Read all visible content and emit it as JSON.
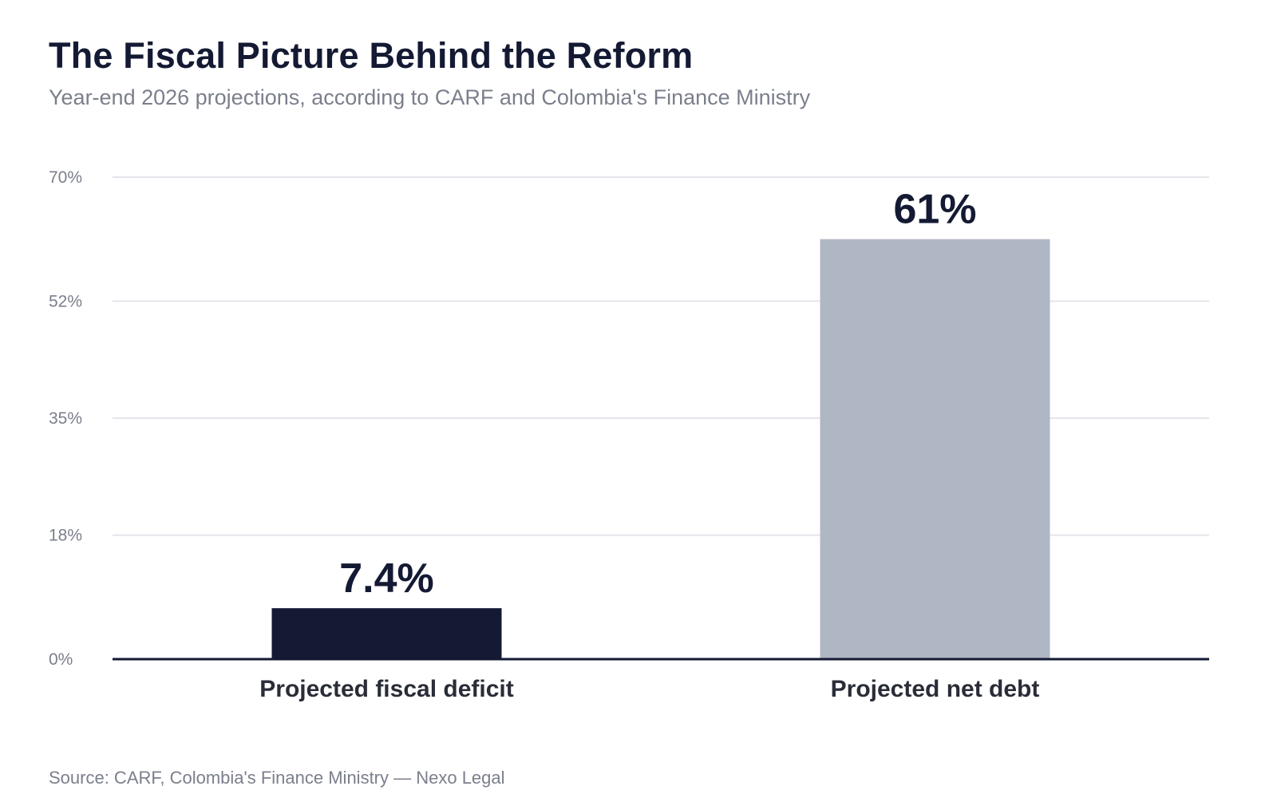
{
  "chart_data": {
    "type": "bar",
    "title": "The Fiscal Picture Behind the Reform",
    "subtitle": "Year-end 2026 projections, according to CARF and Colombia's Finance Ministry",
    "source": "Source: CARF, Colombia's Finance Ministry — Nexo Legal",
    "categories": [
      "Projected fiscal deficit",
      "Projected net debt"
    ],
    "values": [
      7.4,
      61
    ],
    "value_labels": [
      "7.4%",
      "61%"
    ],
    "bar_colors": [
      "#141a33",
      "#b0b7c4"
    ],
    "xlabel": "",
    "ylabel": "",
    "ylim": [
      0,
      70
    ],
    "yticks": [
      0,
      18,
      35,
      52,
      70
    ],
    "ytick_labels": [
      "0%",
      "18%",
      "35%",
      "52%",
      "70%"
    ],
    "grid": true,
    "legend": "none"
  },
  "colors": {
    "title": "#141a33",
    "muted_text": "#7b7f8c",
    "gridline": "#e3e5ea",
    "baseline": "#141a33"
  }
}
